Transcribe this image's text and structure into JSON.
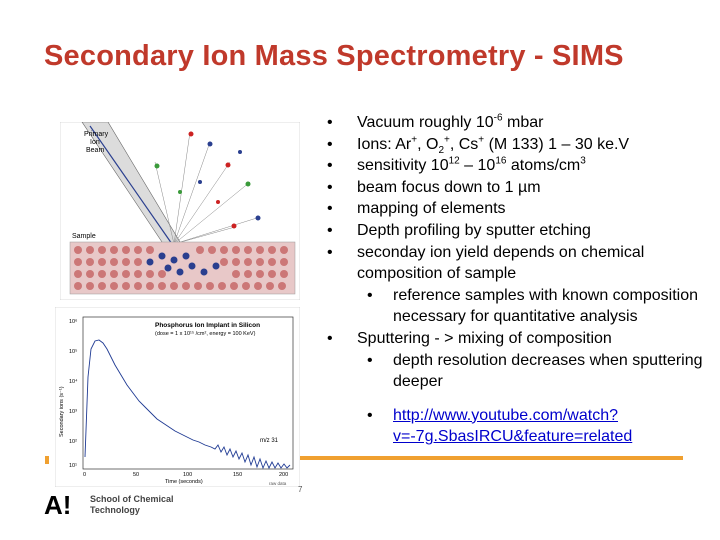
{
  "slide": {
    "title": "Secondary Ion Mass Spectrometry - SIMS",
    "page_number": "7"
  },
  "figure1": {
    "label_primary": "Primary",
    "label_ion": "Ion",
    "label_beam": "Beam",
    "label_sample": "Sample"
  },
  "figure2": {
    "title_line1": "Phosphorus Ion Implant in Silicon",
    "title_line2": "(dose = 1 x 10¹⁵ /cm², energy = 100 KeV)",
    "ylabel": "Secondary ions (s⁻¹)",
    "xlabel": "Time (seconds)",
    "annotation": "m/z 31",
    "yticks": [
      "10⁶",
      "10⁵",
      "10⁴",
      "10³",
      "10²",
      "10¹"
    ],
    "xticks": [
      "0",
      "50",
      "100",
      "150",
      "200"
    ],
    "footer": "raw data"
  },
  "bullets": {
    "b1_pre": "Vacuum roughly  10",
    "b1_sup": "-6",
    "b1_post": " mbar",
    "b2_a": "Ions: Ar",
    "b2_sup1": "+",
    "b2_b": ", O",
    "b2_sub": "2",
    "b2_sup2": "+",
    "b2_c": ", Cs",
    "b2_sup3": "+",
    "b2_d": " (M 133) 1 – 30 ke.V",
    "b3_a": "sensitivity 10",
    "b3_sup1": "12",
    "b3_b": " – 10",
    "b3_sup2": "16",
    "b3_c": " atoms/cm",
    "b3_sup3": "3",
    "b4": "beam focus down to 1 µm",
    "b5": "mapping of elements",
    "b6": "Depth profiling by sputter etching",
    "b7": "seconday ion yield depends on chemical composition of sample",
    "b7_sub": "reference samples with known composition necessary for quantitative analysis",
    "b8": "Sputtering - > mixing of composition",
    "b8_sub": "depth resolution decreases when sputtering deeper",
    "link": "http://www.youtube.com/watch?v=-7g.SbasIRCU&feature=related"
  },
  "footer": {
    "logo_mark": "A!",
    "org_line1": "School of Chemical",
    "org_line2": "Technology"
  },
  "colors": {
    "title": "#c0392b",
    "link": "#0000cc",
    "accent_bar": "#f0a030"
  }
}
